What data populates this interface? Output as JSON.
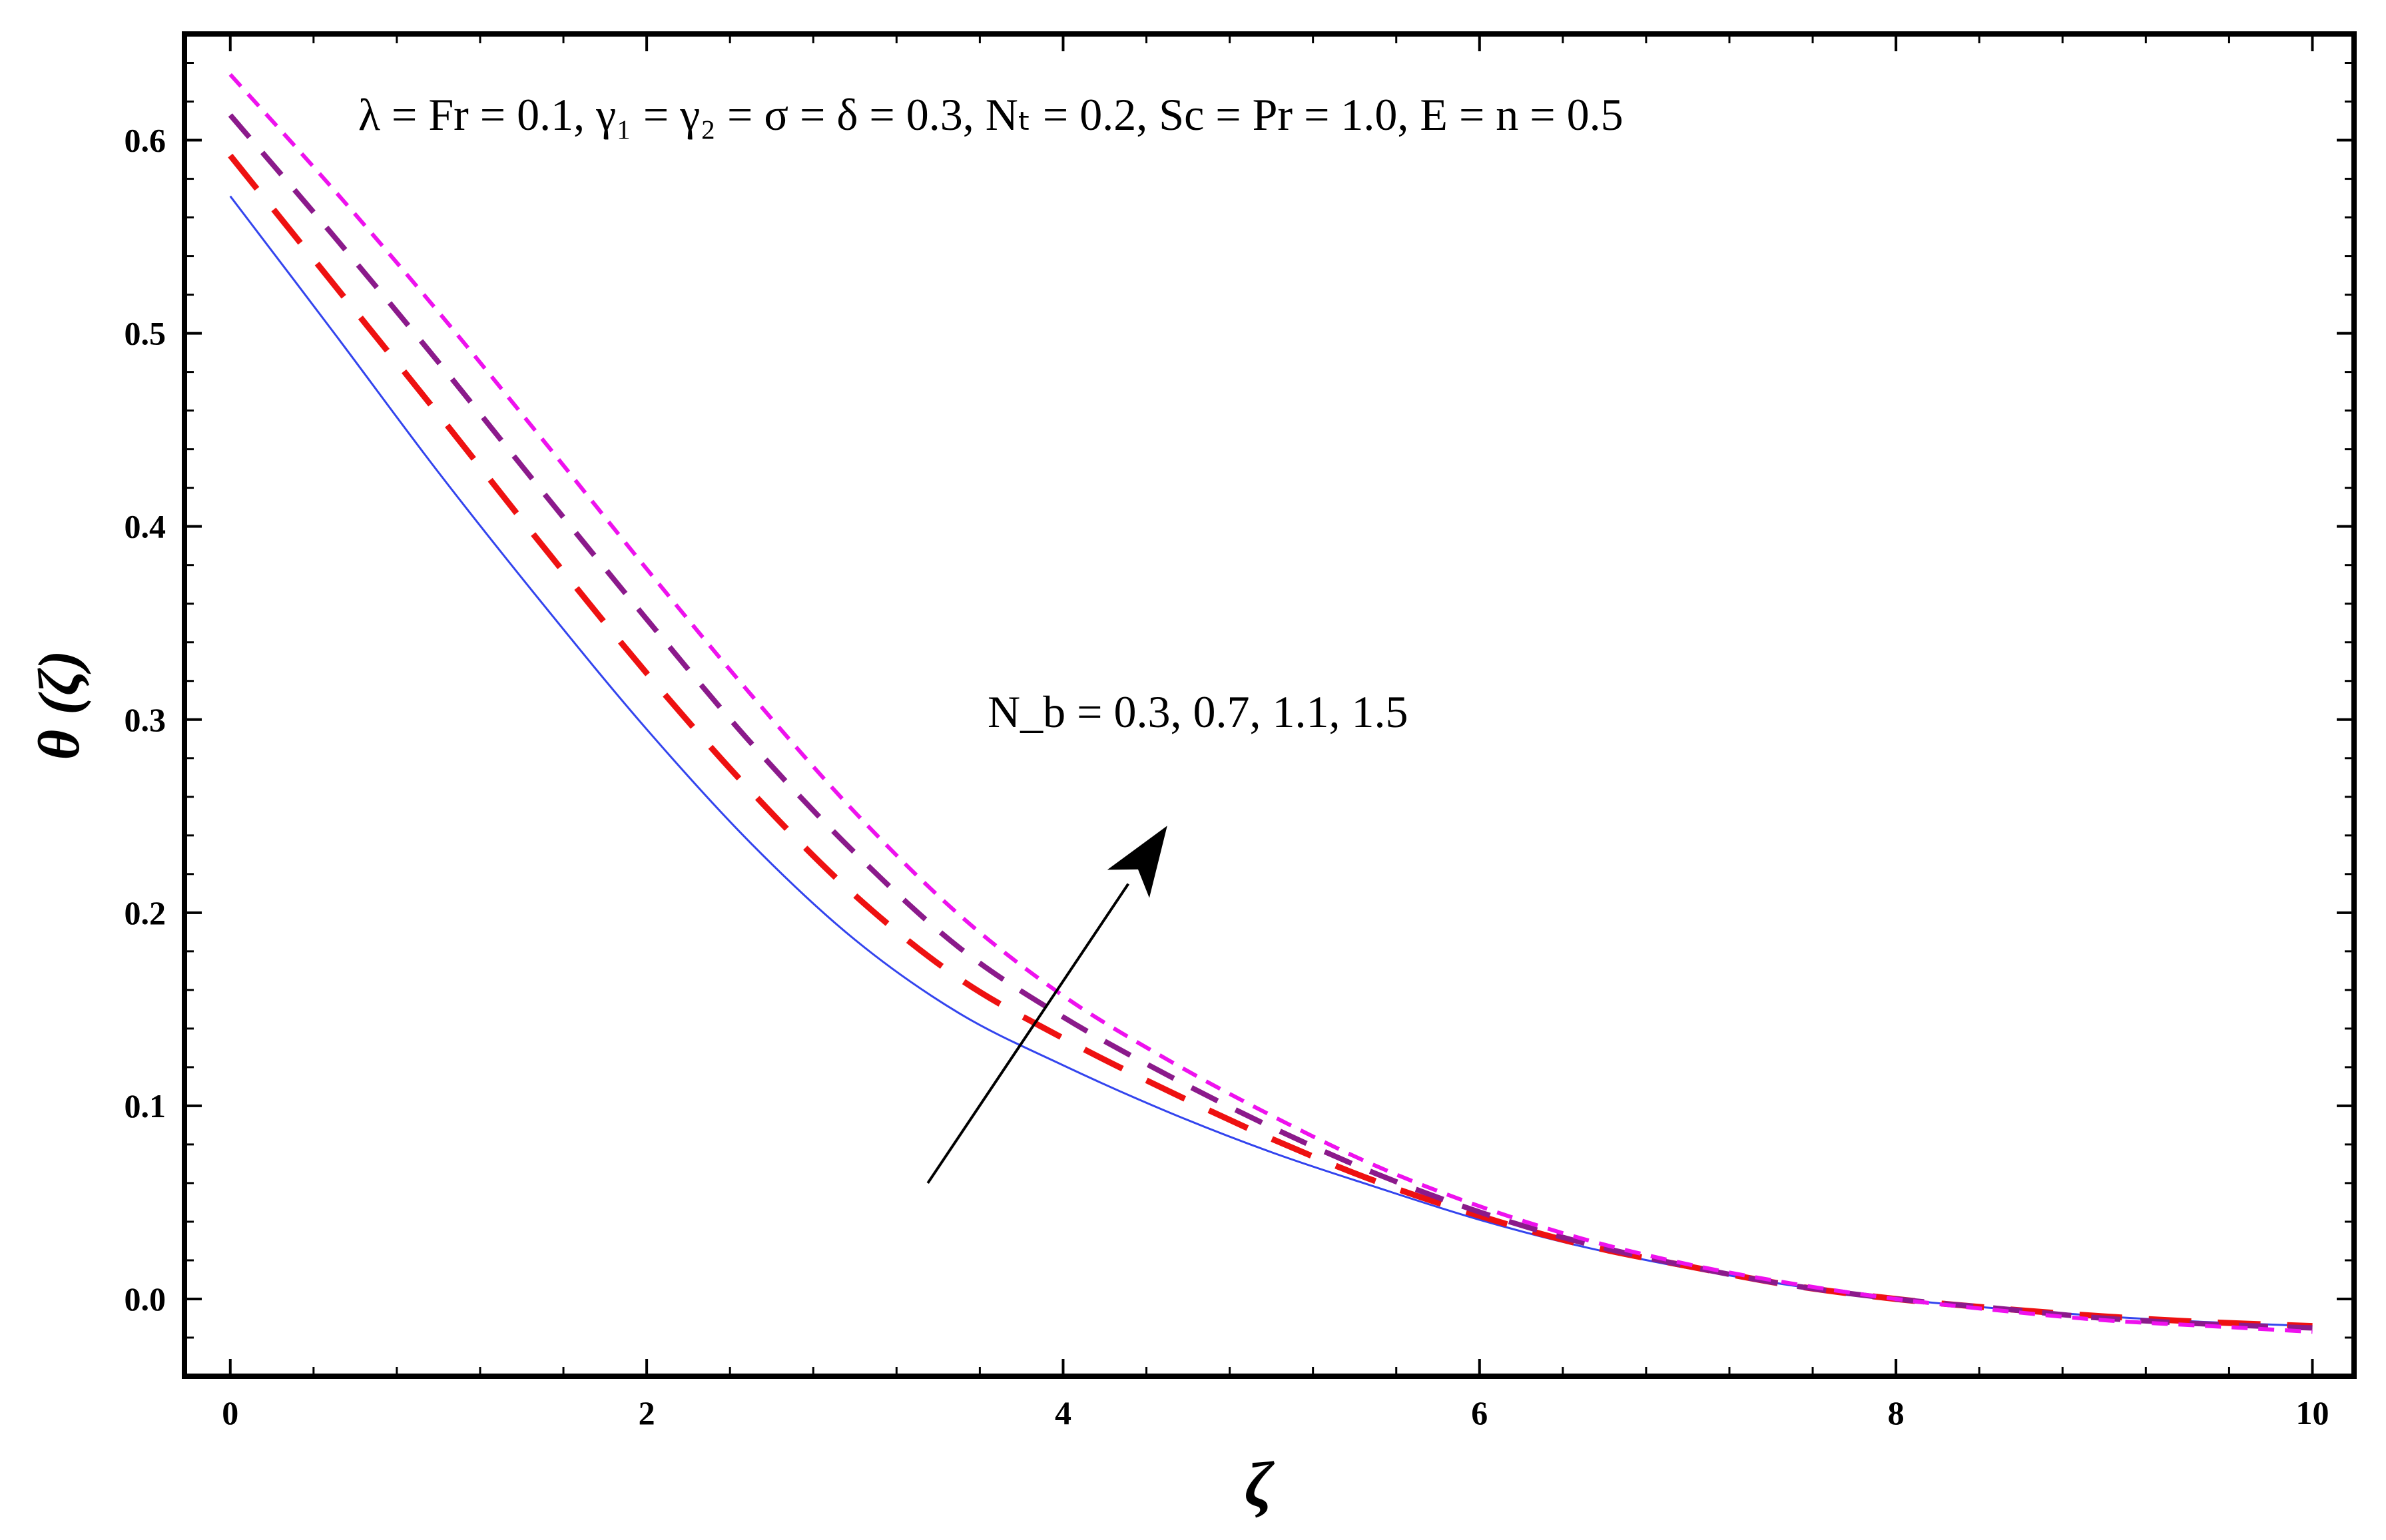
{
  "chart_data": {
    "type": "line",
    "title": "",
    "xlabel": "ζ",
    "ylabel": "θ (ζ)",
    "xlim": [
      -0.22,
      10.2
    ],
    "ylim": [
      -0.04,
      0.655
    ],
    "x_ticks": [
      {
        "value": 0,
        "label": "0"
      },
      {
        "value": 2,
        "label": "2"
      },
      {
        "value": 4,
        "label": "4"
      },
      {
        "value": 6,
        "label": "6"
      },
      {
        "value": 8,
        "label": "8"
      },
      {
        "value": 10,
        "label": "10"
      }
    ],
    "y_ticks": [
      {
        "value": 0.0,
        "label": "0.0"
      },
      {
        "value": 0.1,
        "label": "0.1"
      },
      {
        "value": 0.2,
        "label": "0.2"
      },
      {
        "value": 0.3,
        "label": "0.3"
      },
      {
        "value": 0.4,
        "label": "0.4"
      },
      {
        "value": 0.5,
        "label": "0.5"
      },
      {
        "value": 0.6,
        "label": "0.6"
      }
    ],
    "grid": false,
    "series": [
      {
        "color": "#3344ee",
        "dash": "solid",
        "x": [
          0,
          0.5,
          1,
          1.5,
          2,
          2.5,
          3,
          3.5,
          4,
          4.5,
          5,
          5.5,
          6,
          6.5,
          7,
          7.5,
          8,
          8.5,
          9,
          9.5,
          10
        ],
        "y": [
          0.571,
          0.5,
          0.428,
          0.36,
          0.295,
          0.236,
          0.186,
          0.148,
          0.121,
          0.097,
          0.076,
          0.058,
          0.041,
          0.027,
          0.016,
          0.007,
          0.0,
          -0.005,
          -0.009,
          -0.012,
          -0.014
        ]
      },
      {
        "color": "#ee1111",
        "dash": "long",
        "x": [
          0,
          0.5,
          1,
          1.5,
          2,
          2.5,
          3,
          3.5,
          4,
          4.5,
          5,
          5.5,
          6,
          6.5,
          7,
          7.5,
          8,
          8.5,
          9,
          9.5,
          10
        ],
        "y": [
          0.592,
          0.525,
          0.458,
          0.39,
          0.324,
          0.263,
          0.209,
          0.166,
          0.135,
          0.108,
          0.083,
          0.061,
          0.043,
          0.028,
          0.017,
          0.007,
          0.0,
          -0.005,
          -0.009,
          -0.012,
          -0.014
        ]
      },
      {
        "color": "#8b1a8b",
        "dash": "medium",
        "x": [
          0,
          0.5,
          1,
          1.5,
          2,
          2.5,
          3,
          3.5,
          4,
          4.5,
          5,
          5.5,
          6,
          6.5,
          7,
          7.5,
          8,
          8.5,
          9,
          9.5,
          10
        ],
        "y": [
          0.613,
          0.55,
          0.485,
          0.418,
          0.352,
          0.288,
          0.231,
          0.182,
          0.146,
          0.116,
          0.089,
          0.065,
          0.045,
          0.029,
          0.017,
          0.007,
          0.0,
          -0.005,
          -0.01,
          -0.013,
          -0.015
        ]
      },
      {
        "color": "#ee11ee",
        "dash": "short",
        "x": [
          0,
          0.5,
          1,
          1.5,
          2,
          2.5,
          3,
          3.5,
          4,
          4.5,
          5,
          5.5,
          6,
          6.5,
          7,
          7.5,
          8,
          8.5,
          9,
          9.5,
          10
        ],
        "y": [
          0.634,
          0.574,
          0.511,
          0.445,
          0.378,
          0.313,
          0.252,
          0.199,
          0.157,
          0.124,
          0.095,
          0.069,
          0.048,
          0.031,
          0.018,
          0.008,
          0.0,
          -0.006,
          -0.011,
          -0.014,
          -0.017
        ]
      }
    ],
    "annotations": [
      {
        "id": "params",
        "text": "λ = Fr = 0.1, γ₁ = γ₂ = σ = δ = 0.3, Nₜ = 0.2, Sc = Pr = 1.0, E = n = 0.5"
      },
      {
        "id": "nb",
        "text": "N_b = 0.3, 0.7, 1.1, 1.5"
      }
    ],
    "arrow": {
      "from": [
        3.35,
        0.06
      ],
      "to": [
        4.5,
        0.245
      ]
    }
  }
}
